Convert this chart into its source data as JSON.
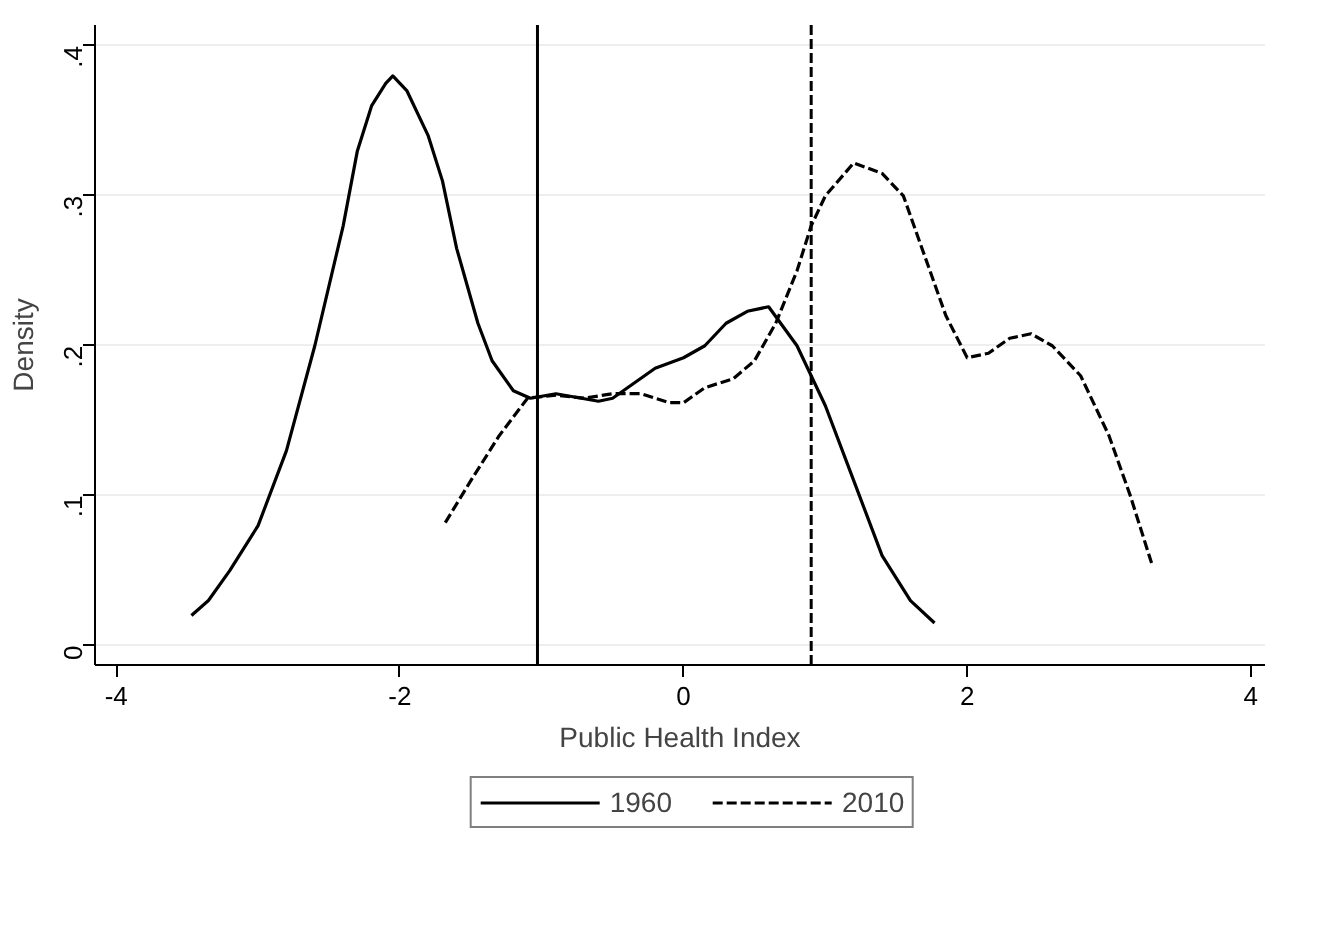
{
  "chart_data": {
    "type": "line",
    "xlabel": "Public Health Index",
    "ylabel": "Density",
    "xlim": [
      -4.15,
      4.1
    ],
    "ylim": [
      -0.013,
      0.414
    ],
    "xticks": [
      -4,
      -2,
      0,
      2,
      4
    ],
    "yticks": [
      {
        "value": 0,
        "label": "0"
      },
      {
        "value": 0.1,
        "label": ".1"
      },
      {
        "value": 0.2,
        "label": ".2"
      },
      {
        "value": 0.3,
        "label": ".3"
      },
      {
        "value": 0.4,
        "label": ".4"
      }
    ],
    "grid": "y",
    "legend": "bottom",
    "marker": "none",
    "series": [
      {
        "name": "1960",
        "color": "#000000",
        "line_style": "solid",
        "x": [
          -3.47,
          -3.35,
          -3.2,
          -3.0,
          -2.8,
          -2.6,
          -2.4,
          -2.3,
          -2.2,
          -2.1,
          -2.05,
          -1.95,
          -1.8,
          -1.7,
          -1.6,
          -1.45,
          -1.35,
          -1.2,
          -1.08,
          -0.9,
          -0.6,
          -0.5,
          -0.35,
          -0.2,
          0,
          0.15,
          0.3,
          0.45,
          0.6,
          0.8,
          1.0,
          1.2,
          1.4,
          1.6,
          1.77
        ],
        "values": [
          0.02,
          0.03,
          0.05,
          0.08,
          0.13,
          0.2,
          0.28,
          0.33,
          0.36,
          0.375,
          0.38,
          0.37,
          0.34,
          0.31,
          0.265,
          0.215,
          0.19,
          0.17,
          0.165,
          0.168,
          0.163,
          0.165,
          0.175,
          0.185,
          0.192,
          0.2,
          0.215,
          0.223,
          0.226,
          0.2,
          0.16,
          0.11,
          0.06,
          0.03,
          0.015
        ]
      },
      {
        "name": "2010",
        "color": "#000000",
        "line_style": "dashed",
        "x": [
          -1.68,
          -1.5,
          -1.3,
          -1.1,
          -0.9,
          -0.7,
          -0.5,
          -0.3,
          -0.1,
          0.0,
          0.15,
          0.35,
          0.5,
          0.65,
          0.8,
          0.9,
          1.0,
          1.2,
          1.4,
          1.55,
          1.7,
          1.85,
          2.0,
          2.15,
          2.3,
          2.45,
          2.6,
          2.8,
          3.0,
          3.15,
          3.3
        ],
        "values": [
          0.082,
          0.11,
          0.14,
          0.165,
          0.167,
          0.165,
          0.168,
          0.168,
          0.162,
          0.162,
          0.172,
          0.178,
          0.19,
          0.215,
          0.25,
          0.28,
          0.3,
          0.322,
          0.315,
          0.3,
          0.26,
          0.22,
          0.192,
          0.195,
          0.205,
          0.208,
          0.2,
          0.18,
          0.14,
          0.1,
          0.055
        ]
      }
    ],
    "ref_lines": [
      {
        "axis": "x",
        "value": -1.03,
        "color": "#000000",
        "line_style": "solid"
      },
      {
        "axis": "x",
        "value": 0.9,
        "color": "#000000",
        "line_style": "dashed"
      }
    ]
  }
}
